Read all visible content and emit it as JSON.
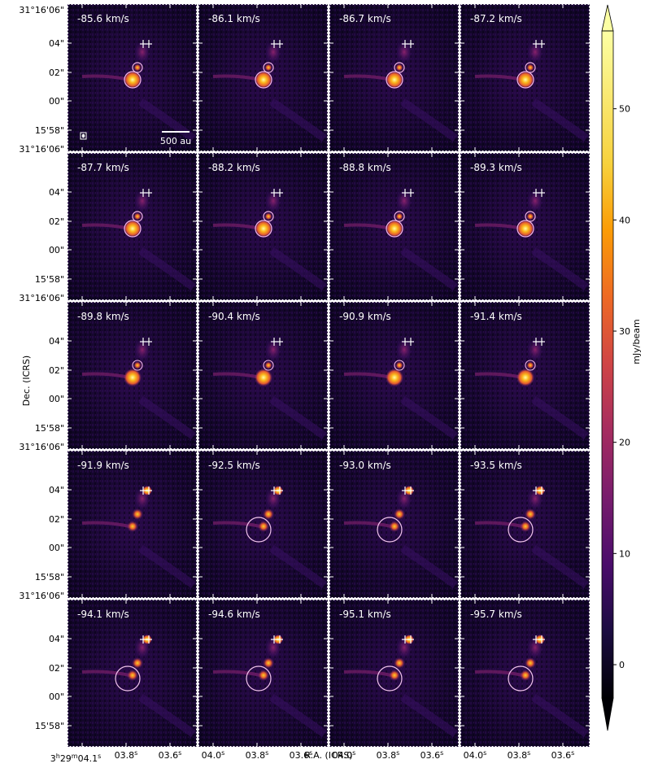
{
  "chart_data": {
    "type": "heatmap",
    "description_kind": "channel-map grid",
    "xlabel": "R.A. (ICRS)",
    "ylabel": "Dec. (ICRS)",
    "x_ticks": [
      {
        "value": "04.1",
        "label_main": "3h29m04.1s",
        "col0_label": [
          "3",
          "h",
          "29",
          "m",
          "04.1",
          "s"
        ]
      },
      {
        "value": "04.0",
        "label": [
          "04.0",
          "s"
        ]
      },
      {
        "value": "03.8",
        "label": [
          "03.8",
          "s"
        ]
      },
      {
        "value": "03.6",
        "label": [
          "03.6",
          "s"
        ]
      }
    ],
    "x_tick_labels_col0": [
      [
        "3",
        "h",
        "29",
        "m",
        "04.1",
        "s"
      ],
      [
        "03.8",
        "s"
      ],
      [
        "03.6",
        "s"
      ]
    ],
    "x_tick_labels_other": [
      [
        "04.0",
        "s"
      ],
      [
        "03.8",
        "s"
      ],
      [
        "03.6",
        "s"
      ]
    ],
    "y_tick_labels_top": "31°16'06\"",
    "y_tick_labels": [
      "04\"",
      "02\"",
      "00\"",
      "15'58\""
    ],
    "y_tick_label_first": "31°16'06\"",
    "colorbar": {
      "label": "mJy/beam",
      "ticks": [
        0,
        10,
        20,
        30,
        40,
        50
      ],
      "range": [
        -3,
        57
      ],
      "colormap": "inferno",
      "extend": "both"
    },
    "scale_bar": "500 au",
    "panels": [
      {
        "velocity": "-85.6 km/s",
        "large_circle": false
      },
      {
        "velocity": "-86.1 km/s",
        "large_circle": false
      },
      {
        "velocity": "-86.7 km/s",
        "large_circle": false
      },
      {
        "velocity": "-87.2 km/s",
        "large_circle": false
      },
      {
        "velocity": "-87.7 km/s",
        "large_circle": false
      },
      {
        "velocity": "-88.2 km/s",
        "large_circle": false
      },
      {
        "velocity": "-88.8 km/s",
        "large_circle": false
      },
      {
        "velocity": "-89.3 km/s",
        "large_circle": false
      },
      {
        "velocity": "-89.8 km/s",
        "large_circle": false
      },
      {
        "velocity": "-90.4 km/s",
        "large_circle": false
      },
      {
        "velocity": "-90.9 km/s",
        "large_circle": false
      },
      {
        "velocity": "-91.4 km/s",
        "large_circle": false
      },
      {
        "velocity": "-91.9 km/s",
        "large_circle": false
      },
      {
        "velocity": "-92.5 km/s",
        "large_circle": true
      },
      {
        "velocity": "-93.0 km/s",
        "large_circle": true
      },
      {
        "velocity": "-93.5 km/s",
        "large_circle": true
      },
      {
        "velocity": "-94.1 km/s",
        "large_circle": true
      },
      {
        "velocity": "-94.6 km/s",
        "large_circle": true
      },
      {
        "velocity": "-95.1 km/s",
        "large_circle": true
      },
      {
        "velocity": "-95.7 km/s",
        "large_circle": true
      }
    ]
  }
}
